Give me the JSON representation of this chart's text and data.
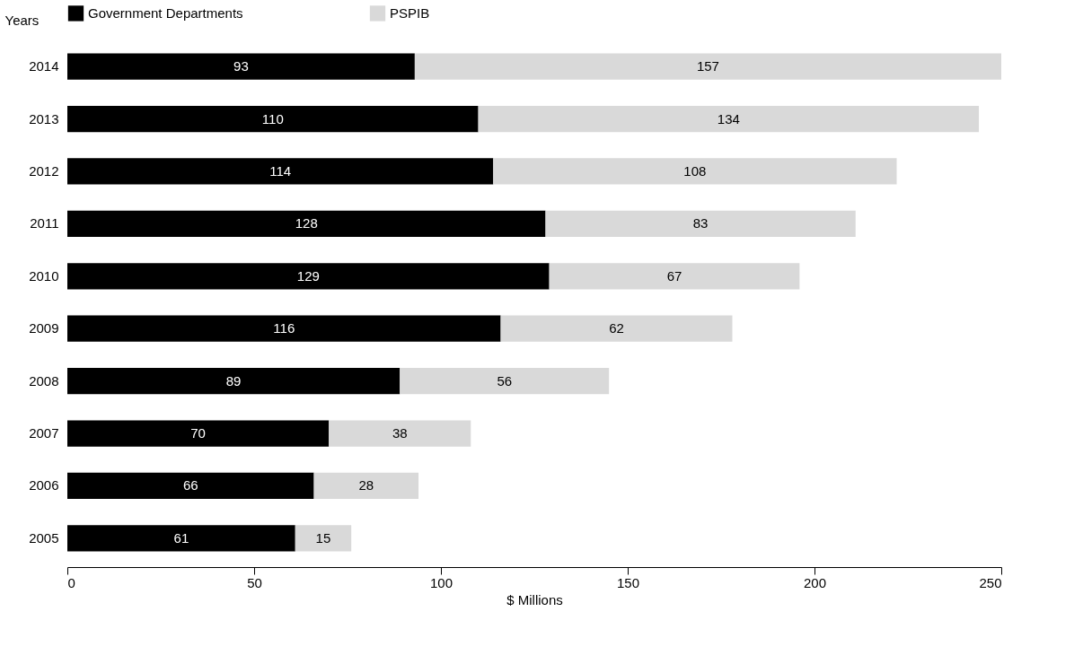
{
  "chart_data": {
    "type": "bar",
    "orientation": "horizontal",
    "stacked": true,
    "ylabel": "Years",
    "xlabel": "$ Millions",
    "categories": [
      "2014",
      "2013",
      "2012",
      "2011",
      "2010",
      "2009",
      "2008",
      "2007",
      "2006",
      "2005"
    ],
    "series": [
      {
        "name": "Government Departments",
        "color": "#000000",
        "values": [
          93,
          110,
          114,
          128,
          129,
          116,
          89,
          70,
          66,
          61
        ]
      },
      {
        "name": "PSPIB",
        "color": "#d9d9d9",
        "values": [
          157,
          134,
          108,
          83,
          67,
          62,
          56,
          38,
          28,
          15
        ]
      }
    ],
    "xlim": [
      0,
      250
    ],
    "xticks": [
      0,
      50,
      100,
      150,
      200,
      250
    ],
    "grid": false,
    "legend": "top",
    "data_labels": true
  }
}
